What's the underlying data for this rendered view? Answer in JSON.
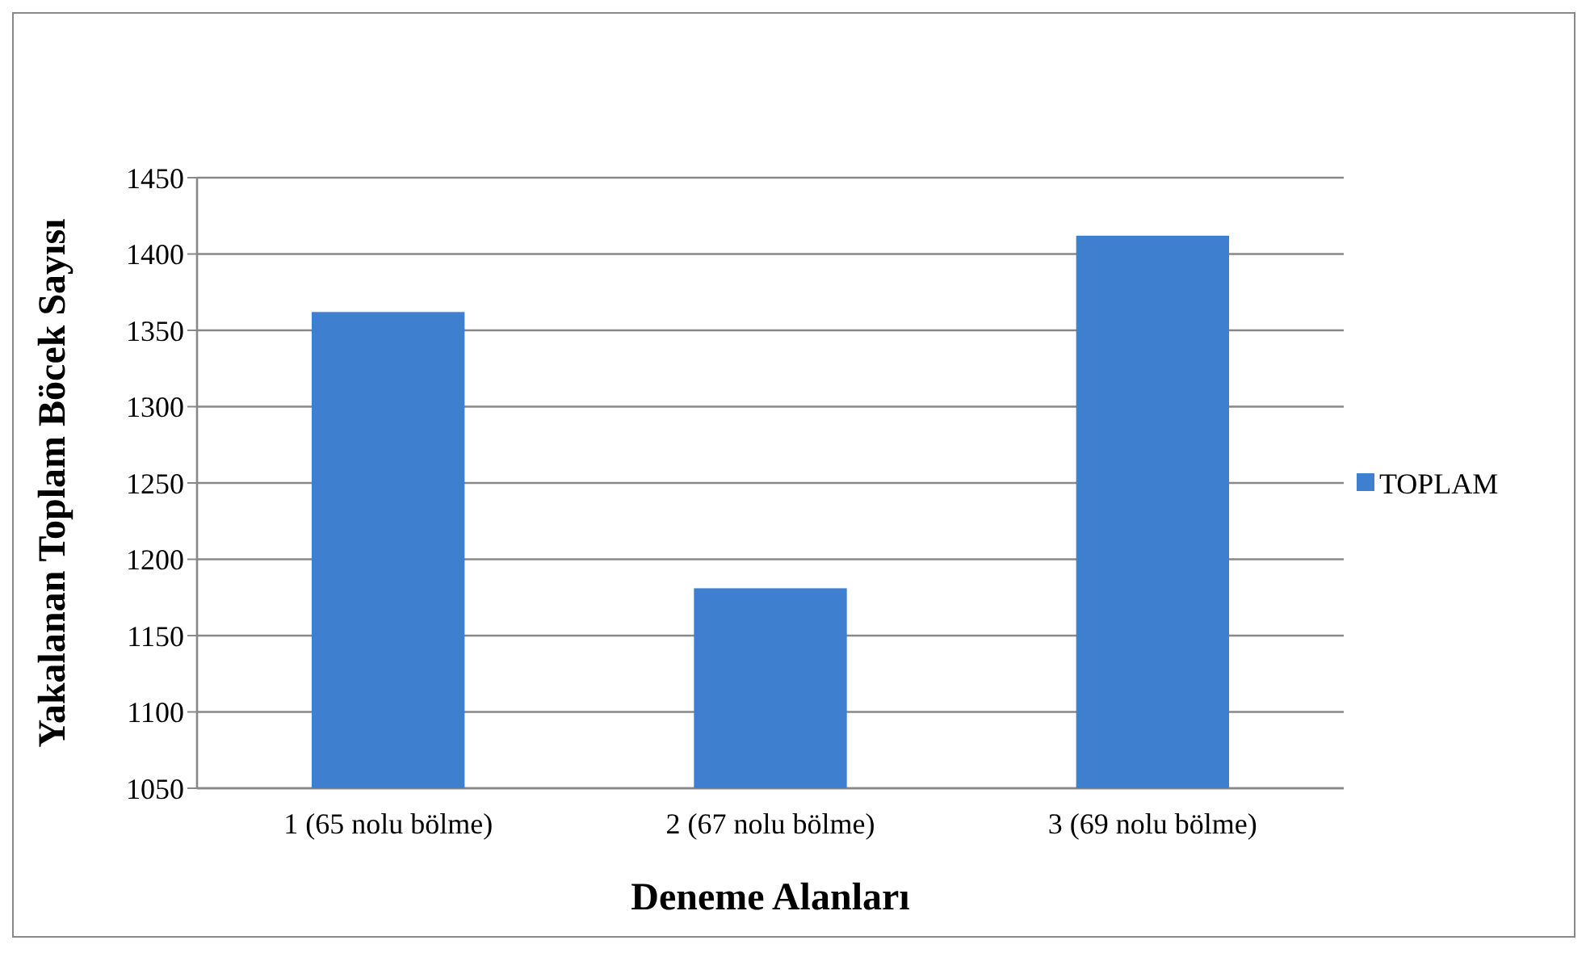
{
  "chart_data": {
    "type": "bar",
    "xlabel": "Deneme Alanları",
    "ylabel": "Yakalanan Toplam Böcek Sayısı",
    "categories": [
      "1 (65 nolu bölme)",
      "2 (67 nolu bölme)",
      "3 (69 nolu bölme)"
    ],
    "series": [
      {
        "name": "TOPLAM",
        "color": "#3f7fd0",
        "values": [
          1362,
          1181,
          1412
        ]
      }
    ],
    "ylim": [
      1050,
      1450
    ],
    "yticks": [
      1050,
      1100,
      1150,
      1200,
      1250,
      1300,
      1350,
      1400,
      1450
    ],
    "grid": "y",
    "legend": "right"
  }
}
